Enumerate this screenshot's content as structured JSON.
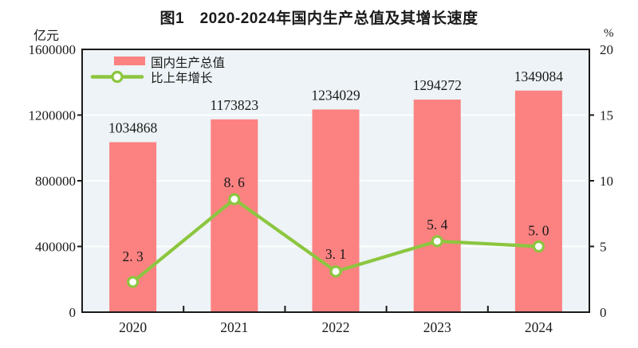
{
  "chart_data": {
    "type": "bar",
    "combo": "bar+line",
    "title": "图1　2020-2024年国内生产总值及其增长速度",
    "categories": [
      "2020",
      "2021",
      "2022",
      "2023",
      "2024"
    ],
    "series": [
      {
        "name": "国内生产总值",
        "chart_type": "bar",
        "axis": "left",
        "values": [
          1034868,
          1173823,
          1234029,
          1294272,
          1349084
        ],
        "labels": [
          "1034868",
          "1173823",
          "1234029",
          "1294272",
          "1349084"
        ]
      },
      {
        "name": "比上年增长",
        "chart_type": "line",
        "axis": "right",
        "values": [
          2.3,
          8.6,
          3.1,
          5.4,
          5.0
        ],
        "labels": [
          "2. 3",
          "8. 6",
          "3. 1",
          "5. 4",
          "5. 0"
        ]
      }
    ],
    "left_axis": {
      "unit": "亿元",
      "min": 0,
      "max": 1600000,
      "step": 400000,
      "tick_labels": [
        "0",
        "400000",
        "800000",
        "1200000",
        "1600000"
      ]
    },
    "right_axis": {
      "unit": "%",
      "min": 0,
      "max": 20,
      "step": 5,
      "tick_labels": [
        "0",
        "5",
        "10",
        "15",
        "20"
      ]
    },
    "legend": {
      "position": "top-left-inside",
      "items": [
        "国内生产总值",
        "比上年增长"
      ]
    },
    "grid": "horizontal-white-lines"
  },
  "colors": {
    "bar": "#fc8181",
    "line": "#8cc63f",
    "marker_fill": "#ffffff",
    "plot_bg": "#edf3f6",
    "grid": "#ffffff",
    "axis": "#1a1a1a",
    "text": "#1a1a1a",
    "title": "#1a1a1a"
  }
}
